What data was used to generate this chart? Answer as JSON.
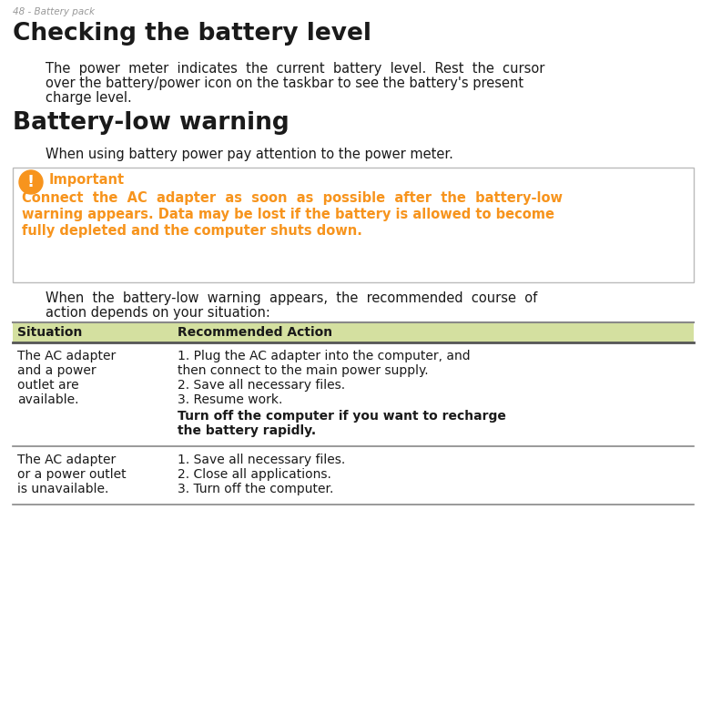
{
  "page_label": "48 - Battery pack",
  "title1": "Checking the battery level",
  "para1_lines": [
    "The  power  meter  indicates  the  current  battery  level.  Rest  the  cursor",
    "over the battery/power icon on the taskbar to see the battery's present",
    "charge level."
  ],
  "title2": "Battery-low warning",
  "para2": "When using battery power pay attention to the power meter.",
  "important_title": "Important",
  "important_body_lines": [
    "Connect  the  AC  adapter  as  soon  as  possible  after  the  battery-low",
    "warning appears. Data may be lost if the battery is allowed to become",
    "fully depleted and the computer shuts down."
  ],
  "para3_lines": [
    "When  the  battery-low  warning  appears,  the  recommended  course  of",
    "action depends on your situation:"
  ],
  "table_header_col1": "Situation",
  "table_header_col2": "Recommended Action",
  "row1_col1_lines": [
    "The AC adapter",
    "and a power",
    "outlet are",
    "available."
  ],
  "row1_col2_normal": [
    "1. Plug the AC adapter into the computer, and",
    "then connect to the main power supply.",
    "2. Save all necessary files.",
    "3. Resume work."
  ],
  "row1_col2_bold_lines": [
    "Turn off the computer if you want to recharge",
    "the battery rapidly."
  ],
  "row2_col1_lines": [
    "The AC adapter",
    "or a power outlet",
    "is unavailable."
  ],
  "row2_col2_lines": [
    "1. Save all necessary files.",
    "2. Close all applications.",
    "3. Turn off the computer."
  ],
  "bg_color": "#ffffff",
  "dark_text": "#1a1a1a",
  "orange_color": "#f7941d",
  "table_header_bg": "#d4e0a0",
  "table_border_color": "#888888",
  "label_color": "#999999",
  "label_fontsize": 7.5,
  "title_fontsize": 19,
  "body_fontsize": 10.5,
  "important_fontsize": 10.5,
  "table_fontsize": 10.0
}
